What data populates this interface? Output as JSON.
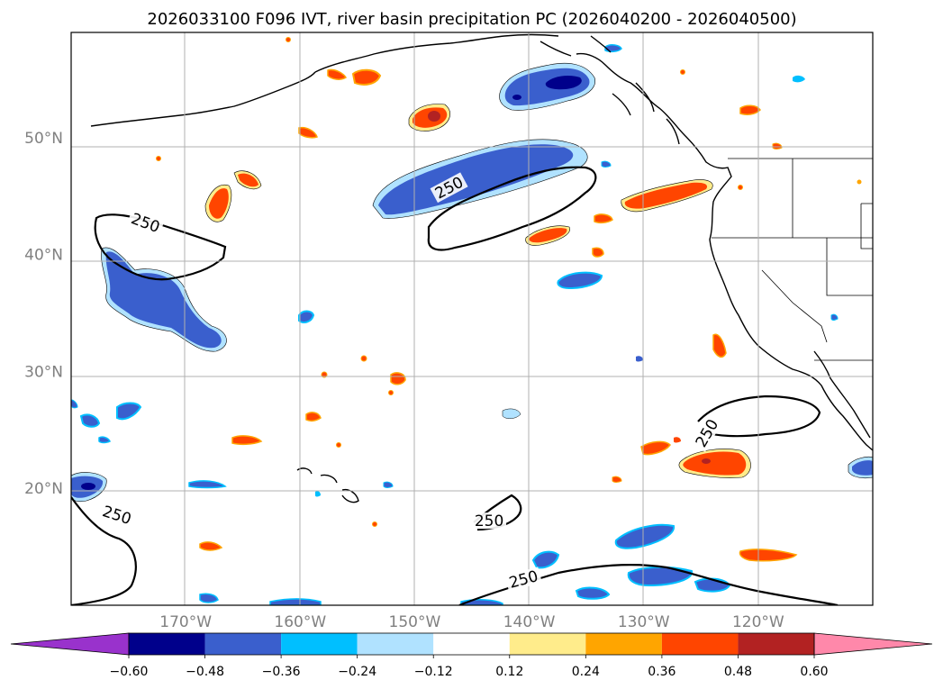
{
  "chart_data": {
    "type": "map-contour",
    "title": "2026033100 F096 IVT, river basin precipitation PC (2026040200 - 2026040500)",
    "lon_range": [
      -180,
      -110
    ],
    "lat_range": [
      10,
      59
    ],
    "lon_ticks": [
      {
        "value": -170,
        "label": "170°W"
      },
      {
        "value": -160,
        "label": "160°W"
      },
      {
        "value": -150,
        "label": "150°W"
      },
      {
        "value": -140,
        "label": "140°W"
      },
      {
        "value": -130,
        "label": "130°W"
      },
      {
        "value": -120,
        "label": "120°W"
      }
    ],
    "lat_ticks": [
      {
        "value": 50,
        "label": "50°N"
      },
      {
        "value": 40,
        "label": "40°N"
      },
      {
        "value": 30,
        "label": "30°N"
      },
      {
        "value": 20,
        "label": "20°N"
      }
    ],
    "grid": true,
    "ivt_contour_level": 250,
    "contour_labels": [
      {
        "text": "250",
        "lon": -147,
        "lat": 45.5,
        "angle": -28
      },
      {
        "text": "250",
        "lon": -173.5,
        "lat": 42.5,
        "angle": 20
      },
      {
        "text": "250",
        "lon": -124.5,
        "lat": 24.5,
        "angle": -60
      },
      {
        "text": "250",
        "lon": -143.5,
        "lat": 17.0,
        "angle": 0
      },
      {
        "text": "250",
        "lon": -176,
        "lat": 17.5,
        "angle": 18
      },
      {
        "text": "250",
        "lon": -140.5,
        "lat": 12.0,
        "angle": -15
      }
    ],
    "colorbar": {
      "boundaries": [
        -0.6,
        -0.48,
        -0.36,
        -0.24,
        -0.12,
        0.12,
        0.24,
        0.36,
        0.48,
        0.6
      ],
      "tick_labels": [
        "−0.60",
        "−0.48",
        "−0.36",
        "−0.24",
        "−0.12",
        "0.12",
        "0.24",
        "0.36",
        "0.48",
        "0.60"
      ],
      "colors": [
        "#9932cc",
        "#00008b",
        "#3a5fcd",
        "#00bfff",
        "#b0e2ff",
        "#ffffff",
        "#ffec8b",
        "#ffa500",
        "#ff4500",
        "#b22222",
        "#ff88aa"
      ],
      "extend": "both"
    },
    "features": [
      {
        "name": "negative-pc-region-45n-150w",
        "sign": "negative",
        "peak": -0.4
      },
      {
        "name": "negative-pc-region-37n-170w",
        "sign": "negative",
        "peak": -0.4
      },
      {
        "name": "negative-pc-region-56n-137w",
        "sign": "negative",
        "peak": -0.5
      },
      {
        "name": "negative-pc-region-20n-178w",
        "sign": "negative",
        "peak": -0.5
      },
      {
        "name": "negative-pc-region-22n-115w",
        "sign": "negative",
        "peak": -0.4
      },
      {
        "name": "positive-pc-region-46n-128w",
        "sign": "positive",
        "peak": 0.45
      },
      {
        "name": "positive-pc-region-23n-124w",
        "sign": "positive",
        "peak": 0.5
      },
      {
        "name": "positive-pc-region-52n-151w",
        "sign": "positive",
        "peak": 0.5
      },
      {
        "name": "positive-pc-region-43n-143w",
        "sign": "positive",
        "peak": 0.45
      },
      {
        "name": "positive-pc-region-45n-166w",
        "sign": "positive",
        "peak": 0.45
      }
    ]
  }
}
